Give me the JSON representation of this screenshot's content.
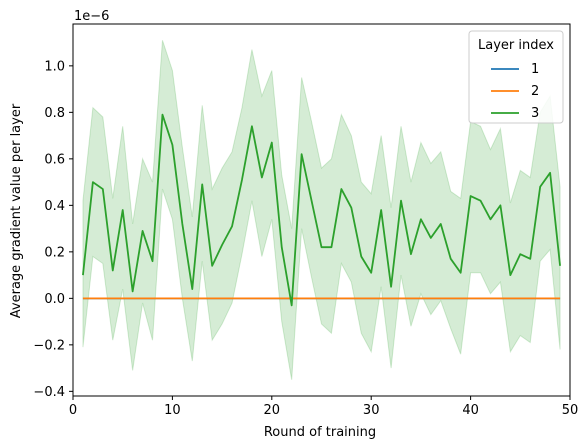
{
  "chart_data": {
    "type": "line",
    "xlabel": "Round of training",
    "ylabel": "Average gradient value per layer",
    "offset_text": "1e−6",
    "xlim": [
      0,
      50
    ],
    "ylim": [
      -0.42,
      1.18
    ],
    "xticks": [
      0,
      10,
      20,
      30,
      40,
      50
    ],
    "yticks": [
      -0.4,
      -0.2,
      0.0,
      0.2,
      0.4,
      0.6,
      0.8,
      1.0
    ],
    "ytick_labels": [
      "−0.4",
      "−0.2",
      "0.0",
      "0.2",
      "0.4",
      "0.6",
      "0.8",
      "1.0"
    ],
    "grid": false,
    "legend": {
      "title": "Layer index",
      "placement": "top-right"
    },
    "x": [
      1,
      2,
      3,
      4,
      5,
      6,
      7,
      8,
      9,
      10,
      11,
      12,
      13,
      14,
      15,
      16,
      17,
      18,
      19,
      20,
      21,
      22,
      23,
      24,
      25,
      26,
      27,
      28,
      29,
      30,
      31,
      32,
      33,
      34,
      35,
      36,
      37,
      38,
      39,
      40,
      41,
      42,
      43,
      44,
      45,
      46,
      47,
      48,
      49
    ],
    "series": [
      {
        "name": "1",
        "color": "#1f77b4",
        "values": [
          0,
          0,
          0,
          0,
          0,
          0,
          0,
          0,
          0,
          0,
          0,
          0,
          0,
          0,
          0,
          0,
          0,
          0,
          0,
          0,
          0,
          0,
          0,
          0,
          0,
          0,
          0,
          0,
          0,
          0,
          0,
          0,
          0,
          0,
          0,
          0,
          0,
          0,
          0,
          0,
          0,
          0,
          0,
          0,
          0,
          0,
          0,
          0,
          0
        ]
      },
      {
        "name": "2",
        "color": "#ff7f0e",
        "values": [
          0,
          0,
          0,
          0,
          0,
          0,
          0,
          0,
          0,
          0,
          0,
          0,
          0,
          0,
          0,
          0,
          0,
          0,
          0,
          0,
          0,
          0,
          0,
          0,
          0,
          0,
          0,
          0,
          0,
          0,
          0,
          0,
          0,
          0,
          0,
          0,
          0,
          0,
          0,
          0,
          0,
          0,
          0,
          0,
          0,
          0,
          0,
          0,
          0
        ]
      },
      {
        "name": "3",
        "color": "#2ca02c",
        "values": [
          0.1,
          0.5,
          0.47,
          0.12,
          0.38,
          0.03,
          0.29,
          0.16,
          0.79,
          0.66,
          0.32,
          0.04,
          0.49,
          0.14,
          0.23,
          0.31,
          0.51,
          0.74,
          0.52,
          0.67,
          0.22,
          -0.03,
          0.62,
          0.42,
          0.22,
          0.22,
          0.47,
          0.39,
          0.18,
          0.11,
          0.38,
          0.05,
          0.42,
          0.19,
          0.34,
          0.26,
          0.32,
          0.17,
          0.11,
          0.44,
          0.42,
          0.34,
          0.4,
          0.1,
          0.19,
          0.17,
          0.48,
          0.54,
          0.14
        ],
        "band_upper": [
          0.42,
          0.82,
          0.78,
          0.43,
          0.74,
          0.32,
          0.6,
          0.5,
          1.11,
          0.98,
          0.65,
          0.35,
          0.83,
          0.47,
          0.56,
          0.63,
          0.82,
          1.07,
          0.87,
          0.98,
          0.53,
          0.3,
          0.95,
          0.76,
          0.56,
          0.6,
          0.79,
          0.7,
          0.5,
          0.45,
          0.7,
          0.39,
          0.74,
          0.5,
          0.67,
          0.58,
          0.63,
          0.46,
          0.43,
          0.76,
          0.74,
          0.64,
          0.73,
          0.41,
          0.55,
          0.52,
          0.8,
          0.87,
          0.48
        ],
        "band_lower": [
          -0.21,
          0.18,
          0.15,
          -0.18,
          0.04,
          -0.31,
          -0.02,
          -0.18,
          0.47,
          0.34,
          0.0,
          -0.27,
          0.16,
          -0.18,
          -0.11,
          -0.02,
          0.19,
          0.42,
          0.18,
          0.34,
          -0.1,
          -0.35,
          0.3,
          0.09,
          -0.11,
          -0.15,
          0.15,
          0.07,
          -0.15,
          -0.23,
          0.05,
          -0.3,
          0.1,
          -0.12,
          0.02,
          -0.07,
          -0.01,
          -0.13,
          -0.24,
          0.11,
          0.11,
          0.02,
          0.07,
          -0.23,
          -0.16,
          -0.19,
          0.16,
          0.21,
          -0.22
        ]
      }
    ]
  }
}
